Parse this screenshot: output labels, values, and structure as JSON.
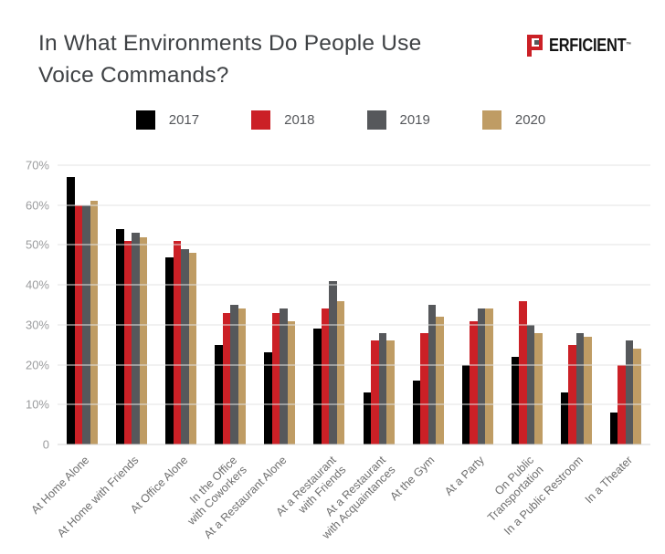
{
  "title": "In What Environments Do People Use\nVoice Commands?",
  "logo": {
    "mark_letter": "P",
    "wordmark": "ERFICIENT",
    "trademark": "™",
    "brand_red": "#CB2026"
  },
  "chart_data": {
    "type": "bar",
    "title": "In What Environments Do People Use Voice Commands?",
    "categories": [
      "At Home Alone",
      "At Home with Friends",
      "At Office Alone",
      "In the Office\nwith Coworkers",
      "At a Restaurant Alone",
      "At a Restaurant\nwith Friends",
      "At a Restaurant\nwith Acquaintances",
      "At the Gym",
      "At a Party",
      "On Public\nTransportation",
      "In a Public Restroom",
      "In a Theater"
    ],
    "series": [
      {
        "name": "2017",
        "color": "#000000",
        "values": [
          67,
          54,
          47,
          25,
          23,
          29,
          13,
          16,
          20,
          22,
          13,
          8
        ]
      },
      {
        "name": "2018",
        "color": "#CB2026",
        "values": [
          60,
          51,
          51,
          33,
          33,
          34,
          26,
          28,
          31,
          36,
          25,
          20
        ]
      },
      {
        "name": "2019",
        "color": "#56585B",
        "values": [
          60,
          53,
          49,
          35,
          34,
          41,
          28,
          35,
          34,
          30,
          28,
          26
        ]
      },
      {
        "name": "2020",
        "color": "#BF9C64",
        "values": [
          61,
          52,
          48,
          34,
          31,
          36,
          26,
          32,
          34,
          28,
          27,
          24
        ]
      }
    ],
    "y_ticks": [
      {
        "label": "70%",
        "value": 70
      },
      {
        "label": "60%",
        "value": 60
      },
      {
        "label": "50%",
        "value": 50
      },
      {
        "label": "40%",
        "value": 40
      },
      {
        "label": "30%",
        "value": 30
      },
      {
        "label": "20%",
        "value": 20
      },
      {
        "label": "10%",
        "value": 10
      },
      {
        "label": "0",
        "value": 0
      }
    ],
    "ylim": [
      0,
      70
    ],
    "grid": true,
    "legend_position": "top",
    "xlabel": "",
    "ylabel": ""
  }
}
